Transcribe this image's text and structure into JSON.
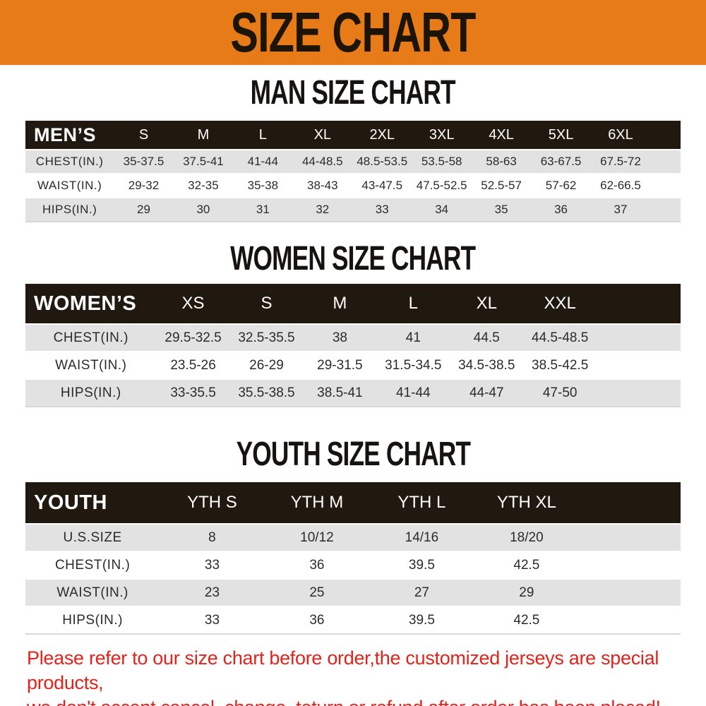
{
  "banner": {
    "title": "SIZE CHART"
  },
  "colors": {
    "banner_bg": "#E77B17",
    "table_header_bg": "#21180F",
    "row_alt_bg": "#E2E2E2",
    "disclaimer_red": "#E3231B"
  },
  "sections": [
    {
      "heading": "MAN SIZE CHART",
      "table": {
        "header_label": "MEN’S",
        "columns": [
          "S",
          "M",
          "L",
          "XL",
          "2XL",
          "3XL",
          "4XL",
          "5XL",
          "6XL"
        ],
        "rows": [
          {
            "label": "CHEST(IN.)",
            "values": [
              "35-37.5",
              "37.5-41",
              "41-44",
              "44-48.5",
              "48.5-53.5",
              "53.5-58",
              "58-63",
              "63-67.5",
              "67.5-72"
            ]
          },
          {
            "label": "WAIST(IN.)",
            "values": [
              "29-32",
              "32-35",
              "35-38",
              "38-43",
              "43-47.5",
              "47.5-52.5",
              "52.5-57",
              "57-62",
              "62-66.5"
            ]
          },
          {
            "label": "HIPS(IN.)",
            "values": [
              "29",
              "30",
              "31",
              "32",
              "33",
              "34",
              "35",
              "36",
              "37"
            ]
          }
        ]
      }
    },
    {
      "heading": "WOMEN SIZE CHART",
      "table": {
        "header_label": "WOMEN’S",
        "columns": [
          "XS",
          "S",
          "M",
          "L",
          "XL",
          "XXL"
        ],
        "rows": [
          {
            "label": "CHEST(IN.)",
            "values": [
              "29.5-32.5",
              "32.5-35.5",
              "38",
              "41",
              "44.5",
              "44.5-48.5"
            ]
          },
          {
            "label": "WAIST(IN.)",
            "values": [
              "23.5-26",
              "26-29",
              "29-31.5",
              "31.5-34.5",
              "34.5-38.5",
              "38.5-42.5"
            ]
          },
          {
            "label": "HIPS(IN.)",
            "values": [
              "33-35.5",
              "35.5-38.5",
              "38.5-41",
              "41-44",
              "44-47",
              "47-50"
            ]
          }
        ]
      }
    },
    {
      "heading": "YOUTH SIZE CHART",
      "table": {
        "header_label": "YOUTH",
        "columns": [
          "YTH S",
          "YTH M",
          "YTH L",
          "YTH XL"
        ],
        "rows": [
          {
            "label": "U.S.SIZE",
            "values": [
              "8",
              "10/12",
              "14/16",
              "18/20"
            ]
          },
          {
            "label": "CHEST(IN.)",
            "values": [
              "33",
              "36",
              "39.5",
              "42.5"
            ]
          },
          {
            "label": "WAIST(IN.)",
            "values": [
              "23",
              "25",
              "27",
              "29"
            ]
          },
          {
            "label": "HIPS(IN.)",
            "values": [
              "33",
              "36",
              "39.5",
              "42.5"
            ]
          }
        ]
      }
    }
  ],
  "footer": {
    "line1": "Please refer to our size chart before order,the customized jerseys are special products,",
    "line2": "we don't accept cancel, change, teturn or refund after order has been placed!"
  }
}
